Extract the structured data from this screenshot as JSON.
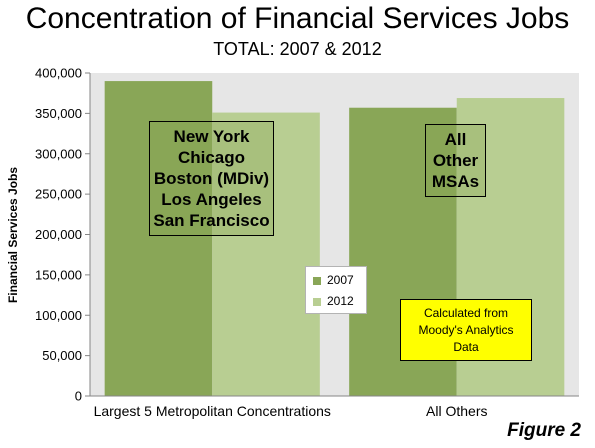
{
  "chart_data": {
    "type": "bar",
    "title": "Concentration of Financial Services Jobs",
    "subtitle": "TOTAL: 2007 & 2012",
    "ylabel": "Financial Services Jobs",
    "xlabel": "",
    "ylim": [
      0,
      400000
    ],
    "yticks": [
      0,
      50000,
      100000,
      150000,
      200000,
      250000,
      300000,
      350000,
      400000
    ],
    "ytick_labels": [
      "0",
      "50,000",
      "100,000",
      "150,000",
      "200,000",
      "250,000",
      "300,000",
      "350,000",
      "400,000"
    ],
    "categories": [
      "Largest 5 Metropolitan Concentrations",
      "All Others"
    ],
    "series": [
      {
        "name": "2007",
        "color": "#89a657",
        "values": [
          390000,
          357000
        ]
      },
      {
        "name": "2012",
        "color": "#b8ce92",
        "values": [
          351000,
          369000
        ]
      }
    ],
    "legend_position": "center",
    "grid": false,
    "plot_background": "#e6e6e6"
  },
  "annotations": {
    "cities": [
      "New York",
      "Chicago",
      "Boston (MDiv)",
      "Los Angeles",
      "San Francisco"
    ],
    "others": [
      "All",
      "Other",
      "MSAs"
    ],
    "note": [
      "Calculated from",
      "Moody's Analytics",
      "Data"
    ]
  },
  "figure_label": "Figure 2"
}
